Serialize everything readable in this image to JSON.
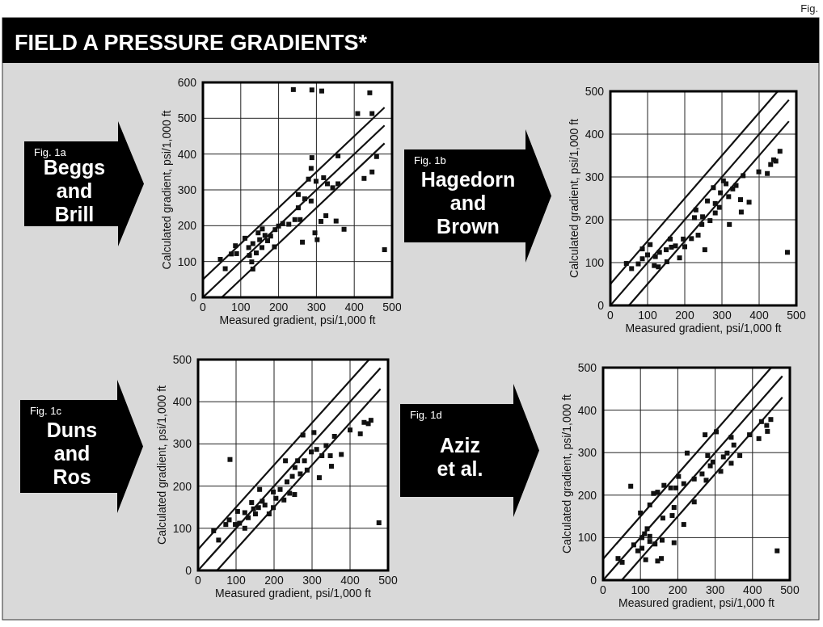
{
  "chart_data": [
    {
      "type": "scatter",
      "title": "Beggs and Brill",
      "annotations": [
        "FIELD A PRESSURE GRADIENTS*",
        "Fig.",
        "Fig. 1a"
      ],
      "xlabel": "Measured gradient, psi/1,000 ft",
      "ylabel": "Calculated gradient, psi/1,000 ft",
      "xlim": [
        0,
        500
      ],
      "ylim": [
        0,
        600
      ],
      "xticks": [
        0,
        100,
        200,
        300,
        400,
        500
      ],
      "yticks": [
        0,
        100,
        200,
        300,
        400,
        500,
        600
      ],
      "grid": true,
      "marker": "square",
      "series": [
        {
          "type": "scatter",
          "color": "#111111",
          "x": [
            239,
            288,
            314,
            441,
            409,
            447,
            357,
            459,
            288,
            286,
            447,
            426,
            279,
            299,
            319,
            329,
            343,
            357,
            252,
            269,
            286,
            252,
            325,
            312,
            352,
            373,
            243,
            257,
            227,
            211,
            200,
            191,
            179,
            164,
            157,
            146,
            150,
            132,
            121,
            111,
            86,
            89,
            75,
            46,
            59,
            129,
            132,
            189,
            171,
            156,
            263,
            296,
            302,
            480,
            123,
            141
          ],
          "values": [
            580,
            579,
            576,
            571,
            513,
            513,
            395,
            393,
            390,
            360,
            350,
            332,
            330,
            324,
            334,
            317,
            306,
            317,
            287,
            275,
            269,
            250,
            228,
            212,
            213,
            190,
            217,
            217,
            204,
            206,
            199,
            189,
            171,
            173,
            191,
            180,
            161,
            150,
            139,
            165,
            144,
            122,
            121,
            106,
            80,
            99,
            79,
            141,
            158,
            139,
            154,
            180,
            161,
            133,
            117,
            124
          ]
        },
        {
          "type": "line",
          "marker": "none",
          "color": "#111111",
          "x": [
            0,
            480
          ],
          "values": [
            50,
            530
          ]
        },
        {
          "type": "line",
          "marker": "none",
          "color": "#111111",
          "x": [
            0,
            480
          ],
          "values": [
            0,
            480
          ]
        },
        {
          "type": "line",
          "marker": "none",
          "color": "#111111",
          "x": [
            50,
            480
          ],
          "values": [
            0,
            430
          ]
        }
      ]
    },
    {
      "type": "scatter",
      "title": "Hagedorn and Brown",
      "annotations": [
        "Fig. 1b"
      ],
      "xlabel": "Measured gradient, psi/1,000 ft",
      "ylabel": "Calculated gradient, psi/1,000 ft",
      "xlim": [
        0,
        500
      ],
      "ylim": [
        0,
        500
      ],
      "xticks": [
        0,
        100,
        200,
        300,
        400,
        500
      ],
      "yticks": [
        0,
        100,
        200,
        300,
        400,
        500
      ],
      "grid": true,
      "marker": "square",
      "series": [
        {
          "type": "scatter",
          "color": "#111111",
          "x": [
            43,
            57,
            75,
            86,
            86,
            107,
            100,
            118,
            129,
            121,
            132,
            150,
            152,
            161,
            164,
            175,
            186,
            196,
            200,
            218,
            236,
            246,
            226,
            230,
            254,
            248,
            261,
            268,
            277,
            282,
            293,
            282,
            296,
            304,
            318,
            320,
            329,
            338,
            350,
            352,
            357,
            373,
            399,
            422,
            431,
            445,
            439,
            456,
            476,
            311
          ],
          "values": [
            98,
            86,
            97,
            109,
            132,
            142,
            118,
            93,
            90,
            114,
            124,
            130,
            102,
            155,
            136,
            139,
            111,
            155,
            137,
            156,
            164,
            189,
            205,
            223,
            130,
            207,
            244,
            198,
            275,
            238,
            229,
            216,
            263,
            291,
            254,
            189,
            272,
            280,
            247,
            218,
            303,
            241,
            312,
            308,
            329,
            337,
            340,
            360,
            124,
            284
          ]
        },
        {
          "type": "line",
          "marker": "none",
          "color": "#111111",
          "x": [
            0,
            450
          ],
          "values": [
            50,
            500
          ]
        },
        {
          "type": "line",
          "marker": "none",
          "color": "#111111",
          "x": [
            0,
            480
          ],
          "values": [
            0,
            480
          ]
        },
        {
          "type": "line",
          "marker": "none",
          "color": "#111111",
          "x": [
            50,
            480
          ],
          "values": [
            0,
            430
          ]
        }
      ]
    },
    {
      "type": "scatter",
      "title": "Duns and Ros",
      "annotations": [
        "Fig. 1c"
      ],
      "xlabel": "Measured gradient, psi/1,000 ft",
      "ylabel": "Calculated gradient, psi/1,000 ft",
      "xlim": [
        0,
        500
      ],
      "ylim": [
        0,
        500
      ],
      "xticks": [
        0,
        100,
        200,
        300,
        400,
        500
      ],
      "yticks": [
        0,
        100,
        200,
        300,
        400,
        500
      ],
      "grid": true,
      "marker": "square",
      "series": [
        {
          "type": "scatter",
          "color": "#111111",
          "x": [
            41,
            54,
            73,
            82,
            84,
            98,
            104,
            109,
            123,
            123,
            132,
            141,
            146,
            151,
            159,
            162,
            169,
            176,
            187,
            198,
            198,
            205,
            216,
            226,
            234,
            230,
            241,
            254,
            248,
            255,
            262,
            269,
            280,
            276,
            287,
            298,
            305,
            312,
            319,
            326,
            337,
            348,
            351,
            359,
            377,
            400,
            427,
            437,
            455,
            448,
            476
          ],
          "values": [
            94,
            72,
            109,
            120,
            263,
            109,
            140,
            112,
            137,
            100,
            125,
            161,
            146,
            134,
            149,
            192,
            164,
            155,
            134,
            149,
            186,
            171,
            192,
            167,
            210,
            260,
            183,
            180,
            223,
            244,
            260,
            229,
            260,
            321,
            238,
            281,
            327,
            287,
            220,
            272,
            296,
            272,
            247,
            318,
            275,
            333,
            324,
            351,
            356,
            348,
            113
          ]
        },
        {
          "type": "line",
          "marker": "none",
          "color": "#111111",
          "x": [
            0,
            450
          ],
          "values": [
            50,
            500
          ]
        },
        {
          "type": "line",
          "marker": "none",
          "color": "#111111",
          "x": [
            0,
            480
          ],
          "values": [
            0,
            480
          ]
        },
        {
          "type": "line",
          "marker": "none",
          "color": "#111111",
          "x": [
            50,
            480
          ],
          "values": [
            0,
            430
          ]
        }
      ]
    },
    {
      "type": "scatter",
      "title": "Aziz et al.",
      "annotations": [
        "Fig. 1d"
      ],
      "xlabel": "Measured gradient, psi/1,000 ft",
      "ylabel": "Calculated gradient, psi/1,000 ft",
      "xlim": [
        0,
        500
      ],
      "ylim": [
        0,
        500
      ],
      "xticks": [
        0,
        100,
        200,
        300,
        400,
        500
      ],
      "yticks": [
        0,
        100,
        200,
        300,
        400,
        500
      ],
      "grid": true,
      "marker": "square",
      "series": [
        {
          "type": "scatter",
          "color": "#111111",
          "x": [
            40,
            51,
            74,
            82,
            93,
            100,
            104,
            104,
            111,
            114,
            118,
            125,
            125,
            125,
            135,
            139,
            146,
            146,
            156,
            158,
            163,
            160,
            181,
            185,
            190,
            190,
            195,
            202,
            216,
            216,
            225,
            244,
            244,
            265,
            273,
            276,
            280,
            287,
            294,
            303,
            315,
            322,
            332,
            343,
            343,
            350,
            366,
            392,
            417,
            424,
            438,
            440,
            449,
            466
          ],
          "values": [
            51,
            42,
            221,
            83,
            69,
            158,
            75,
            100,
            109,
            48,
            121,
            91,
            177,
            103,
            204,
            85,
            207,
            45,
            51,
            94,
            223,
            146,
            217,
            152,
            171,
            88,
            217,
            244,
            131,
            227,
            299,
            184,
            238,
            250,
            342,
            235,
            293,
            269,
            278,
            349,
            256,
            290,
            299,
            275,
            336,
            318,
            293,
            342,
            333,
            373,
            364,
            350,
            378,
            69
          ]
        },
        {
          "type": "line",
          "marker": "none",
          "color": "#111111",
          "x": [
            0,
            450
          ],
          "values": [
            50,
            500
          ]
        },
        {
          "type": "line",
          "marker": "none",
          "color": "#111111",
          "x": [
            0,
            480
          ],
          "values": [
            0,
            480
          ]
        },
        {
          "type": "line",
          "marker": "none",
          "color": "#111111",
          "x": [
            50,
            480
          ],
          "values": [
            0,
            430
          ]
        }
      ]
    }
  ]
}
